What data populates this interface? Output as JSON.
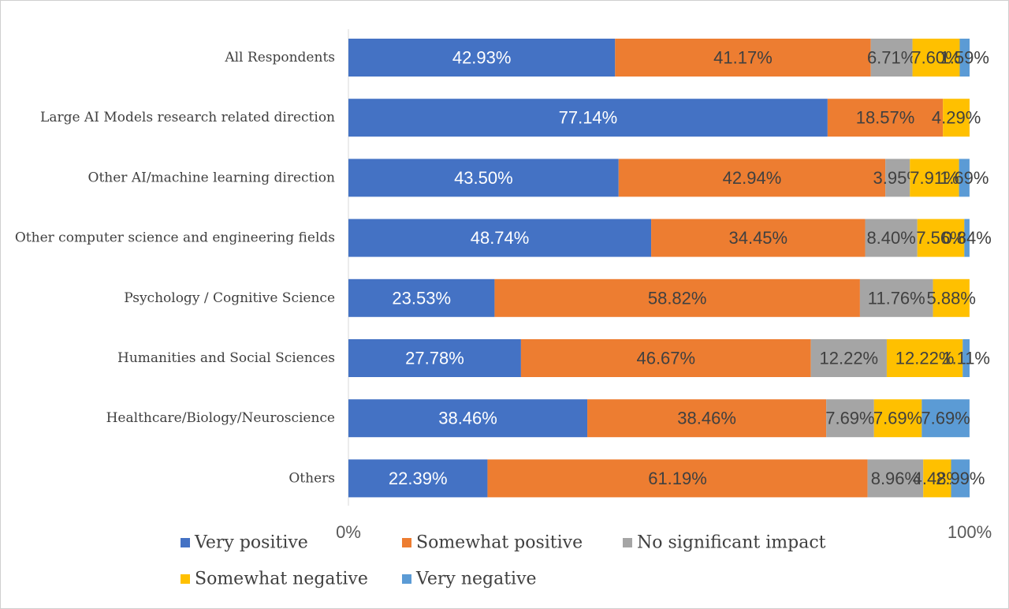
{
  "chart_data": {
    "type": "bar",
    "orientation": "horizontal",
    "stacked": "percent",
    "categories": [
      "All Respondents",
      "Large AI Models research related direction",
      "Other AI/machine learning direction",
      "Other computer science and engineering fields",
      "Psychology / Cognitive Science",
      "Humanities and Social Sciences",
      "Healthcare/Biology/Neuroscience",
      "Others"
    ],
    "series": [
      {
        "name": "Very positive",
        "color": "#4472C4",
        "label_color": "#ffffff",
        "values": [
          42.93,
          77.14,
          43.5,
          48.74,
          23.53,
          27.78,
          38.46,
          22.39
        ],
        "labels": [
          "42.93%",
          "77.14%",
          "43.50%",
          "48.74%",
          "23.53%",
          "27.78%",
          "38.46%",
          "22.39%"
        ]
      },
      {
        "name": "Somewhat positive",
        "color": "#ED7D31",
        "label_color": "#404040",
        "values": [
          41.17,
          18.57,
          42.94,
          34.45,
          58.82,
          46.67,
          38.46,
          61.19
        ],
        "labels": [
          "41.17%",
          "18.57%",
          "42.94%",
          "34.45%",
          "58.82%",
          "46.67%",
          "38.46%",
          "61.19%"
        ]
      },
      {
        "name": "No significant impact",
        "color": "#A5A5A5",
        "label_color": "#404040",
        "values": [
          6.71,
          0,
          3.95,
          8.4,
          11.76,
          12.22,
          7.69,
          8.96
        ],
        "labels": [
          "6.71%",
          "",
          "3.95%",
          "8.40%",
          "11.76%",
          "12.22%",
          "7.69%",
          "8.96%"
        ]
      },
      {
        "name": "Somewhat negative",
        "color": "#FFC000",
        "label_color": "#404040",
        "values": [
          7.6,
          4.29,
          7.91,
          7.56,
          5.88,
          12.22,
          7.69,
          4.48
        ],
        "labels": [
          "7.60%",
          "4.29%",
          "7.91%",
          "7.56%",
          "5.88%",
          "12.22%",
          "7.69%",
          "4.48%"
        ]
      },
      {
        "name": "Very negative",
        "color": "#5B9BD5",
        "label_color": "#404040",
        "values": [
          1.59,
          0,
          1.69,
          0.84,
          0,
          1.11,
          7.69,
          2.99
        ],
        "labels": [
          "1.59%",
          "",
          "1.69%",
          "0.84%",
          "",
          "1.11%",
          "7.69%",
          "2.99%"
        ]
      }
    ],
    "x_ticks": [
      "0%",
      "100%"
    ],
    "xlim": [
      0,
      100
    ],
    "legend": "bottom"
  }
}
